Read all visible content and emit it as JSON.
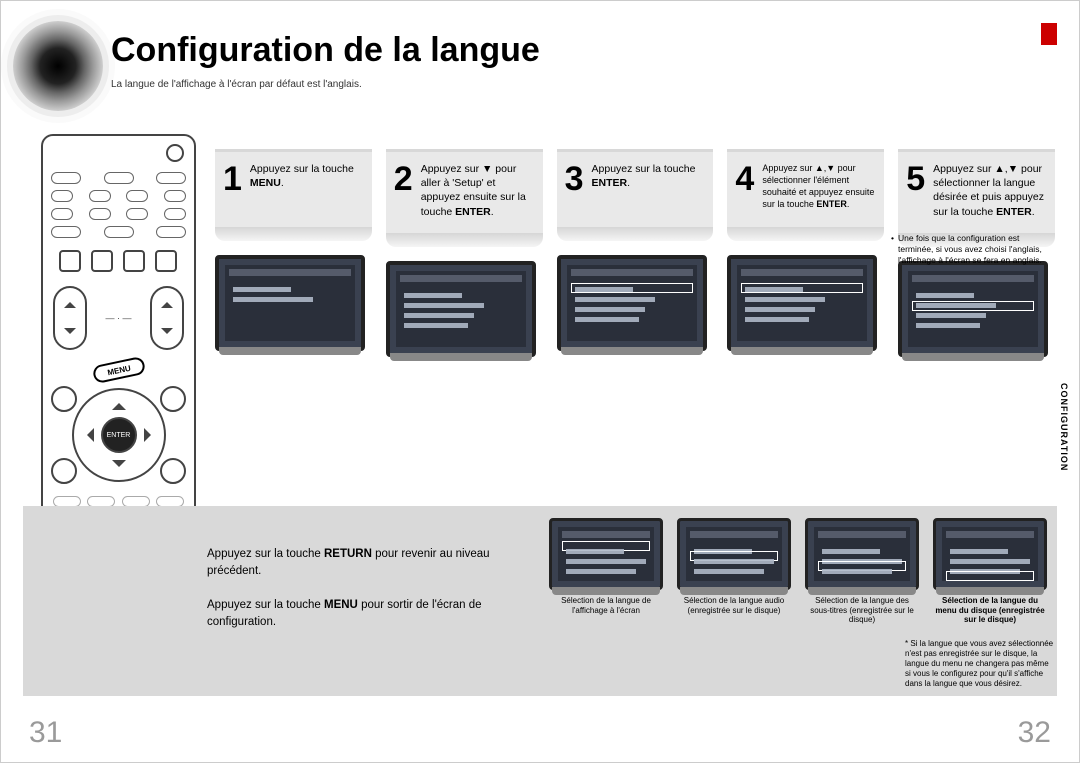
{
  "heading": "Configuration de la langue",
  "subheading": "La langue de l'affichage à l'écran par défaut est l'anglais.",
  "side_tab": "CONFIGURATION",
  "page_left": "31",
  "page_right": "32",
  "remote": {
    "menu_label": "MENU",
    "enter_label": "ENTER"
  },
  "steps": [
    {
      "num": "1",
      "html": "Appuyez sur la touche <b>MENU</b>."
    },
    {
      "num": "2",
      "html": "Appuyez sur ▼ pour aller à 'Setup' et appuyez ensuite sur la touche <b>ENTER</b>."
    },
    {
      "num": "3",
      "html": "Appuyez sur la touche <b>ENTER</b>."
    },
    {
      "num": "4",
      "html": "Appuyez sur ▲,▼ pour sélectionner l'élément souhaité et appuyez ensuite sur la touche <b>ENTER</b>."
    },
    {
      "num": "5",
      "html": "Appuyez sur ▲,▼ pour sélectionner la langue désirée et puis appuyez sur la touche <b>ENTER</b>."
    }
  ],
  "note_step5": "Une fois que la configuration est terminée, si vous avez choisi l'anglais, l'affichage à l'écran se fera en anglais.",
  "tip1_html": "Appuyez sur la touche <b>RETURN</b> pour revenir au niveau précédent.",
  "tip2_html": "Appuyez sur la touche <b>MENU</b> pour sortir de l'écran de configuration.",
  "gallery": [
    {
      "caption": "Sélection de la langue de l'affichage à l'écran",
      "bold": false
    },
    {
      "caption": "Sélection de la langue audio (enregistrée sur le disque)",
      "bold": false
    },
    {
      "caption": "Sélection de la langue des sous-titres (enregistrée sur le disque)",
      "bold": false
    },
    {
      "caption": "Sélection de la langue du menu du disque (enregistrée sur le disque)",
      "bold": true
    }
  ],
  "footnote": "Si la langue que vous avez sélectionnée n'est pas enregistrée sur le disque, la langue du menu ne changera pas même si vous le configurez pour qu'il s'affiche dans la langue que vous désirez.",
  "colors": {
    "red_tab": "#c00",
    "band": "#d9d9d9",
    "step_bg": "#e9e9e9",
    "tv_body": "#2a2f3a",
    "page_num": "#9a9a9a"
  }
}
